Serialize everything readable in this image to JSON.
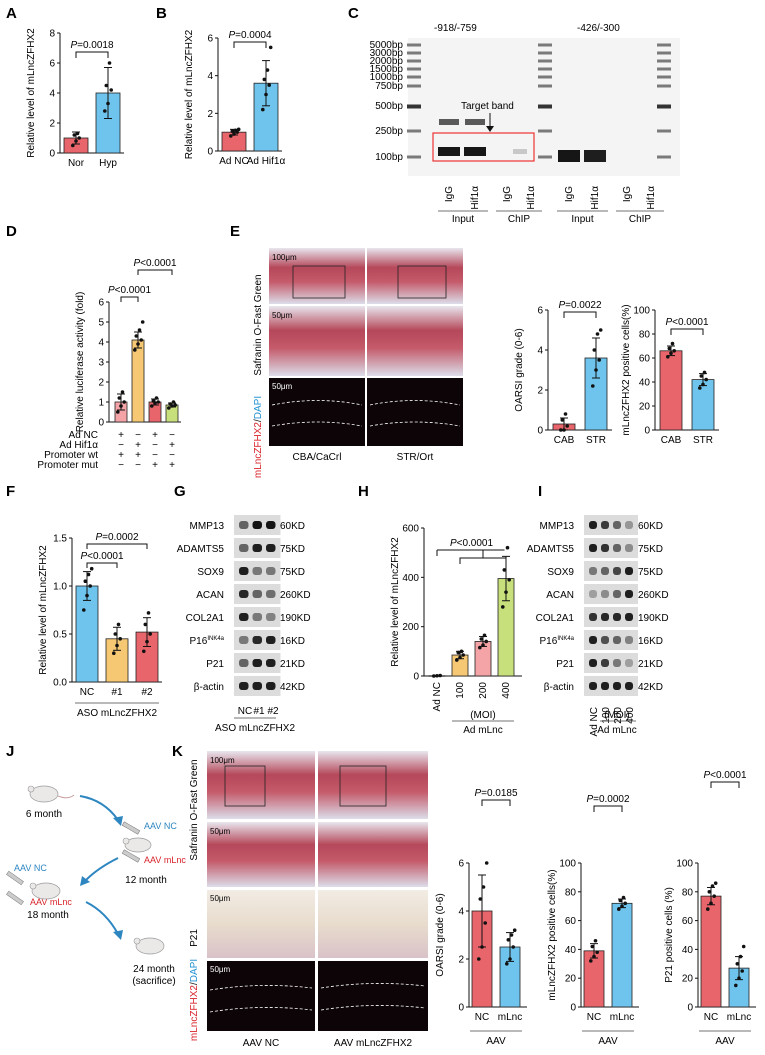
{
  "colors": {
    "red": "#e8656b",
    "blue": "#6ec4ec",
    "orange": "#f7c873",
    "pink": "#f4a3a6",
    "green": "#c8e07c",
    "gray": "#d3d3d3"
  },
  "panels": {
    "A": {
      "letter": "A",
      "ylabel": "Relative level of mLncZFHX2",
      "pval": "P=0.0018",
      "ylim": [
        0,
        8
      ],
      "ticks": [
        "0",
        "2",
        "4",
        "6",
        "8"
      ],
      "bars": [
        {
          "label": "Nor",
          "value": 1.0,
          "sd": 0.4,
          "color": "red",
          "points": [
            0.5,
            0.8,
            1.0,
            1.2,
            1.3
          ]
        },
        {
          "label": "Hyp",
          "value": 4.0,
          "sd": 1.7,
          "color": "blue",
          "points": [
            2.8,
            3.3,
            4.2,
            4.5,
            6.0
          ]
        }
      ]
    },
    "B": {
      "letter": "B",
      "ylabel": "Relative level of mLncZFHX2",
      "pval": "P=0.0004",
      "ylim": [
        0,
        6
      ],
      "ticks": [
        "0",
        "2",
        "4",
        "6"
      ],
      "bars": [
        {
          "label": "Ad NC",
          "value": 1.0,
          "sd": 0.15,
          "color": "red",
          "points": [
            0.8,
            0.9,
            1.0,
            1.05,
            1.1,
            1.15
          ]
        },
        {
          "label": "Ad Hif1α",
          "value": 3.6,
          "sd": 1.2,
          "color": "blue",
          "points": [
            2.2,
            3.0,
            3.5,
            3.8,
            4.3,
            5.5
          ]
        }
      ]
    },
    "C": {
      "letter": "C",
      "region1": "-918/-759",
      "region2": "-426/-300",
      "target": "Target band",
      "markers": [
        "5000bp",
        "3000bp",
        "2000bp",
        "1500bp",
        "1000bp",
        "750bp",
        "500bp",
        "250bp",
        "100bp"
      ],
      "lanes": [
        "IgG",
        "Hif1α",
        "IgG",
        "Hif1α",
        "IgG",
        "Hif1α",
        "IgG",
        "Hif1α"
      ],
      "groups": [
        "Input",
        "ChIP",
        "Input",
        "ChIP"
      ]
    },
    "D": {
      "letter": "D",
      "ylabel": "Relative luciferase activity (fold)",
      "p1": "P<0.0001",
      "p2": "P<0.0001",
      "ylim": [
        0,
        6
      ],
      "ticks": [
        "0",
        "1",
        "2",
        "3",
        "4",
        "5",
        "6"
      ],
      "bars": [
        {
          "value": 1.0,
          "sd": 0.4,
          "color": "pink",
          "points": [
            0.5,
            0.8,
            1.0,
            1.2,
            1.5
          ]
        },
        {
          "value": 4.1,
          "sd": 0.4,
          "color": "orange",
          "points": [
            3.6,
            3.9,
            4.1,
            4.3,
            4.6,
            5.0
          ]
        },
        {
          "value": 1.0,
          "sd": 0.15,
          "color": "red",
          "points": [
            0.8,
            0.95,
            1.0,
            1.05,
            1.2
          ]
        },
        {
          "value": 0.85,
          "sd": 0.1,
          "color": "green",
          "points": [
            0.7,
            0.8,
            0.85,
            0.9,
            1.0
          ]
        }
      ],
      "rows": [
        {
          "label": "Ad NC",
          "signs": [
            "+",
            "−",
            "+",
            "−"
          ]
        },
        {
          "label": "Ad Hif1α",
          "signs": [
            "−",
            "+",
            "−",
            "+"
          ]
        },
        {
          "label": "Promoter wt",
          "signs": [
            "+",
            "+",
            "−",
            "−"
          ]
        },
        {
          "label": "Promoter mut",
          "signs": [
            "−",
            "−",
            "+",
            "+"
          ]
        }
      ]
    },
    "E": {
      "letter": "E",
      "stain": "Safranin O-Fast Green",
      "fluor_red": "mLncZFHX2",
      "fluor_blue": "DAPI",
      "scale1": "100μm",
      "scale2": "50μm",
      "scale3": "50μm",
      "groups": [
        "CBA/CaCrl",
        "STR/Ort"
      ],
      "chart1": {
        "ylabel": "OARSI grade (0-6)",
        "pval": "P=0.0022",
        "ylim": [
          0,
          6
        ],
        "ticks": [
          "0",
          "2",
          "4",
          "6"
        ],
        "bars": [
          {
            "label": "CAB",
            "value": 0.3,
            "sd": 0.3,
            "color": "red",
            "points": [
              0,
              0,
              0.2,
              0.5,
              0.8
            ]
          },
          {
            "label": "STR",
            "value": 3.6,
            "sd": 1.0,
            "color": "blue",
            "points": [
              2.2,
              3.0,
              3.5,
              4.0,
              4.8,
              5.0
            ]
          }
        ]
      },
      "chart2": {
        "ylabel": "mLncZFHX2 positive cells(%)",
        "pval": "P<0.0001",
        "ylim": [
          0,
          100
        ],
        "ticks": [
          "0",
          "20",
          "40",
          "60",
          "80",
          "100"
        ],
        "bars": [
          {
            "label": "CAB",
            "value": 66,
            "sd": 4,
            "color": "red",
            "points": [
              61,
              64,
              66,
              68,
              72
            ]
          },
          {
            "label": "STR",
            "value": 42,
            "sd": 5,
            "color": "blue",
            "points": [
              35,
              38,
              42,
              45,
              48
            ]
          }
        ]
      }
    },
    "F": {
      "letter": "F",
      "ylabel": "Relative level of mLncZFHX2",
      "p1": "P<0.0001",
      "p2": "P=0.0002",
      "ylim": [
        0,
        1.5
      ],
      "ticks": [
        "0.0",
        "0.5",
        "1.0",
        "1.5"
      ],
      "xlabel": "ASO mLncZFHX2",
      "bars": [
        {
          "label": "NC",
          "value": 1.0,
          "sd": 0.15,
          "color": "blue",
          "points": [
            0.75,
            0.9,
            1.0,
            1.05,
            1.12,
            1.18
          ]
        },
        {
          "label": "#1",
          "value": 0.45,
          "sd": 0.12,
          "color": "orange",
          "points": [
            0.3,
            0.38,
            0.45,
            0.5,
            0.6
          ]
        },
        {
          "label": "#2",
          "value": 0.52,
          "sd": 0.15,
          "color": "red",
          "points": [
            0.32,
            0.42,
            0.5,
            0.6,
            0.72
          ]
        }
      ]
    },
    "G": {
      "letter": "G",
      "proteins": [
        "MMP13",
        "ADAMTS5",
        "SOX9",
        "ACAN",
        "COL2A1",
        "P16INK4a",
        "P21",
        "β-actin"
      ],
      "sizes": [
        "60KD",
        "75KD",
        "75KD",
        "260KD",
        "190KD",
        "16KD",
        "21KD",
        "42KD"
      ],
      "lanes": [
        "NC",
        "#1",
        "#2"
      ],
      "xlabel": "ASO mLncZFHX2"
    },
    "H": {
      "letter": "H",
      "ylabel": "Relative level of mLncZFHX2",
      "pval": "P<0.0001",
      "ylim": [
        0,
        600
      ],
      "ticks": [
        "0",
        "200",
        "400",
        "600"
      ],
      "moi": "(MOI)",
      "xlabel": "Ad mLnc",
      "bars": [
        {
          "label": "Ad NC",
          "value": 1,
          "sd": 0,
          "color": "gray",
          "points": [
            0,
            1,
            2
          ]
        },
        {
          "label": "100",
          "value": 85,
          "sd": 15,
          "color": "orange",
          "points": [
            65,
            75,
            85,
            95,
            100
          ]
        },
        {
          "label": "200",
          "value": 140,
          "sd": 20,
          "color": "pink",
          "points": [
            115,
            125,
            140,
            150,
            165
          ]
        },
        {
          "label": "400",
          "value": 395,
          "sd": 90,
          "color": "green",
          "points": [
            280,
            340,
            390,
            430,
            520
          ]
        }
      ]
    },
    "I": {
      "letter": "I",
      "proteins": [
        "MMP13",
        "ADAMTS5",
        "SOX9",
        "ACAN",
        "COL2A1",
        "P16INK4a",
        "P21",
        "β-actin"
      ],
      "sizes": [
        "60KD",
        "75KD",
        "75KD",
        "260KD",
        "190KD",
        "16KD",
        "21KD",
        "42KD"
      ],
      "lanes": [
        "Ad NC",
        "100",
        "200",
        "400"
      ],
      "moi": "(MOI)",
      "xlabel": "Ad mLnc"
    },
    "J": {
      "letter": "J",
      "t1": "6 month",
      "t2": "12 month",
      "t3": "18 month",
      "t4": "24 month",
      "t5": "(sacrifice)",
      "inj1": "AAV NC",
      "inj2": "AAV mLnc",
      "inj3": "AAV NC",
      "inj4": "AAV mLnc"
    },
    "K": {
      "letter": "K",
      "stain": "Safranin O-Fast Green",
      "p21": "P21",
      "fluor_red": "mLncZFHX2",
      "fluor_blue": "DAPI",
      "scale1": "100μm",
      "scale2": "50μm",
      "scale3": "50μm",
      "scale4": "50μm",
      "groups": [
        "AAV NC",
        "AAV mLncZFHX2"
      ],
      "chart1": {
        "ylabel": "OARSI grade (0-6)",
        "pval": "P=0.0185",
        "ylim": [
          0,
          6
        ],
        "ticks": [
          "0",
          "2",
          "4",
          "6"
        ],
        "xlabel": "AAV",
        "bars": [
          {
            "label": "NC",
            "value": 4.0,
            "sd": 1.5,
            "color": "red",
            "points": [
              2.0,
              2.5,
              3.5,
              4.5,
              5.0,
              6.0
            ]
          },
          {
            "label": "mLnc",
            "value": 2.5,
            "sd": 0.6,
            "color": "blue",
            "points": [
              1.8,
              2.0,
              2.5,
              2.8,
              3.0,
              3.2
            ]
          }
        ]
      },
      "chart2": {
        "ylabel": "mLncZFHX2 positive cells(%)",
        "pval": "P=0.0002",
        "ylim": [
          0,
          100
        ],
        "ticks": [
          "0",
          "20",
          "40",
          "60",
          "80",
          "100"
        ],
        "xlabel": "AAV",
        "bars": [
          {
            "label": "NC",
            "value": 39,
            "sd": 5,
            "color": "red",
            "points": [
              32,
              35,
              38,
              42,
              46
            ]
          },
          {
            "label": "mLnc",
            "value": 72,
            "sd": 3,
            "color": "blue",
            "points": [
              68,
              70,
              72,
              74,
              76
            ]
          }
        ]
      },
      "chart3": {
        "ylabel": "P21 positive cells (%)",
        "pval": "P<0.0001",
        "ylim": [
          0,
          100
        ],
        "ticks": [
          "0",
          "20",
          "40",
          "60",
          "80",
          "100"
        ],
        "xlabel": "AAV",
        "bars": [
          {
            "label": "NC",
            "value": 77,
            "sd": 6,
            "color": "red",
            "points": [
              68,
              72,
              77,
              80,
              84,
              86
            ]
          },
          {
            "label": "mLnc",
            "value": 27,
            "sd": 8,
            "color": "blue",
            "points": [
              15,
              20,
              25,
              30,
              35,
              42
            ]
          }
        ]
      }
    }
  }
}
